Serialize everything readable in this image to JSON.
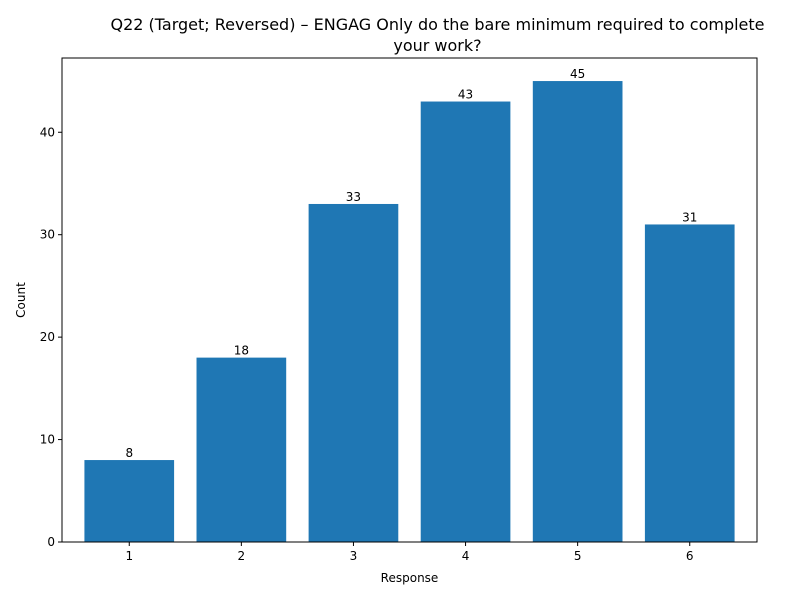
{
  "chart_data": {
    "type": "bar",
    "title": "Q22 (Target; Reversed) – ENGAG Only do the bare minimum required to complete your work?",
    "title_lines": [
      "Q22 (Target; Reversed) – ENGAG Only do the bare minimum required to complete",
      "your work?"
    ],
    "xlabel": "Response",
    "ylabel": "Count",
    "categories": [
      "1",
      "2",
      "3",
      "4",
      "5",
      "6"
    ],
    "values": [
      8,
      18,
      33,
      43,
      45,
      31
    ],
    "ylim": [
      0,
      47.25
    ],
    "yticks": [
      0,
      10,
      20,
      30,
      40
    ],
    "grid": false,
    "bar_color": "#1f77b4",
    "show_data_labels": true
  }
}
